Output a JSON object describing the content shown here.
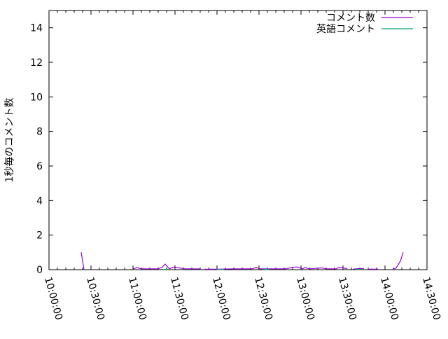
{
  "chart_data": {
    "type": "line",
    "title": "",
    "xlabel": "",
    "ylabel": "1秒毎のコメント数",
    "xlim": [
      "10:00:00",
      "14:30:00"
    ],
    "ylim": [
      0,
      15
    ],
    "x_ticks": [
      "10:00:00",
      "10:30:00",
      "11:00:00",
      "11:30:00",
      "12:00:00",
      "12:30:00",
      "13:00:00",
      "13:30:00",
      "14:00:00",
      "14:30:00"
    ],
    "y_ticks": [
      0,
      2,
      4,
      6,
      8,
      10,
      12,
      14
    ],
    "grid": false,
    "legend": "top-right",
    "series": [
      {
        "name": "コメント数",
        "color": "#9400d3",
        "points": [
          [
            "10:23:00",
            1
          ],
          [
            "10:25:00",
            0
          ],
          null,
          [
            "11:00:00",
            0.05
          ],
          [
            "11:03:00",
            0.12
          ],
          [
            "11:06:00",
            0.05
          ],
          [
            "11:10:00",
            0.05
          ],
          [
            "11:15:00",
            0.05
          ],
          [
            "11:18:00",
            0.05
          ],
          [
            "11:21:00",
            0.15
          ],
          [
            "11:23:00",
            0.32
          ],
          [
            "11:26:00",
            0.05
          ],
          [
            "11:29:00",
            0.15
          ],
          [
            "11:33:00",
            0.1
          ],
          [
            "11:37:00",
            0.05
          ],
          [
            "11:44:00",
            0.05
          ],
          [
            "11:48:00",
            0.05
          ],
          null,
          [
            "11:51:00",
            0.03
          ],
          [
            "12:00:00",
            0.03
          ],
          [
            "12:13:00",
            0.05
          ],
          [
            "12:18:00",
            0.05
          ],
          [
            "12:25:00",
            0.05
          ],
          [
            "12:28:00",
            0.12
          ],
          [
            "12:31:00",
            0.05
          ],
          [
            "12:40:00",
            0.05
          ],
          [
            "12:49:00",
            0.05
          ],
          [
            "12:52:00",
            0.1
          ],
          [
            "12:55:00",
            0.15
          ],
          [
            "12:58:00",
            0.15
          ],
          [
            "13:01:00",
            0.05
          ],
          [
            "13:03:00",
            0.12
          ],
          [
            "13:06:00",
            0.05
          ],
          [
            "13:15:00",
            0.1
          ],
          [
            "13:18:00",
            0.05
          ],
          [
            "13:25:00",
            0.05
          ],
          [
            "13:27:00",
            0.12
          ],
          [
            "13:30:00",
            0.1
          ],
          [
            "13:33:00",
            0.05
          ],
          null,
          [
            "13:37:00",
            0.03
          ],
          [
            "13:41:00",
            0.06
          ],
          [
            "13:45:00",
            0.06
          ],
          null,
          [
            "13:48:00",
            0.03
          ],
          [
            "13:55:00",
            0.03
          ],
          null,
          [
            "14:05:00",
            0
          ],
          [
            "14:08:00",
            0.1
          ],
          [
            "14:11:00",
            0.5
          ],
          [
            "14:13:00",
            1
          ]
        ]
      },
      {
        "name": "英語コメント",
        "color": "#009e73",
        "points": [
          [
            "11:22:00",
            0.02
          ],
          [
            "11:25:00",
            0.02
          ],
          null,
          [
            "12:00:00",
            0.01
          ],
          [
            "12:05:00",
            0.01
          ],
          null,
          [
            "12:33:00",
            0.02
          ],
          [
            "12:37:00",
            0.02
          ],
          null,
          [
            "13:39:00",
            0.02
          ],
          [
            "13:43:00",
            0.02
          ]
        ]
      }
    ]
  }
}
